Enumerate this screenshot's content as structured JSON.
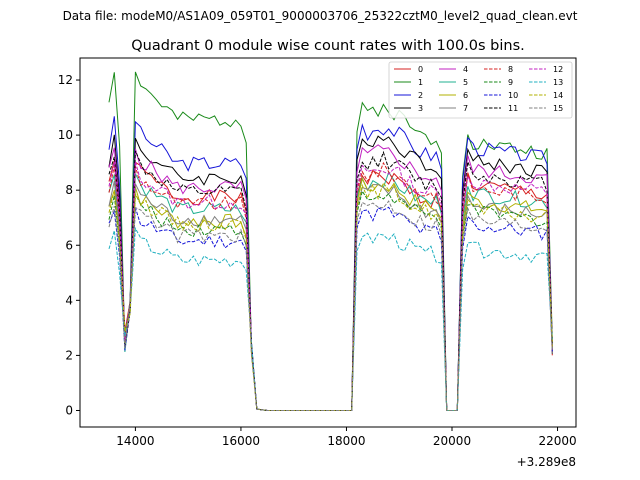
{
  "figure": {
    "suptitle": "Data file: modeM0/AS1A09_059T01_9000003706_25322cztM0_level2_quad_clean.evt"
  },
  "chart_data": {
    "type": "line",
    "title": "Quadrant 0 module wise count rates with 100.0s bins.",
    "xlabel": "",
    "ylabel": "",
    "x_offset_label": "+3.289e8",
    "xlim": [
      12950,
      22350
    ],
    "ylim": [
      -0.6,
      12.8
    ],
    "xticks": [
      14000,
      16000,
      18000,
      20000,
      22000
    ],
    "xtick_labels": [
      "14000",
      "16000",
      "18000",
      "20000",
      "22000"
    ],
    "yticks": [
      0,
      2,
      4,
      6,
      8,
      10,
      12
    ],
    "ytick_labels": [
      "0",
      "2",
      "4",
      "6",
      "8",
      "10",
      "12"
    ],
    "grid": false,
    "legend_position": "top-right",
    "segments": [
      {
        "start": 13500,
        "count": 29
      },
      {
        "start": 16500,
        "count": 17
      },
      {
        "start": 18200,
        "count": 17
      },
      {
        "start": 19900,
        "count": 3
      },
      {
        "start": 20200,
        "count": 18
      }
    ],
    "series": [
      {
        "name": "0",
        "color": "#d62020",
        "dash": false,
        "levels": [
          8.8,
          0,
          8.5,
          8.4
        ],
        "seed": 1
      },
      {
        "name": "1",
        "color": "#1a8a1a",
        "dash": false,
        "levels": [
          12.0,
          0,
          11.0,
          10.0
        ],
        "seed": 2
      },
      {
        "name": "2",
        "color": "#1515d8",
        "dash": false,
        "levels": [
          10.2,
          0,
          10.3,
          9.8
        ],
        "seed": 3
      },
      {
        "name": "3",
        "color": "#000000",
        "dash": false,
        "levels": [
          9.6,
          0,
          9.9,
          9.3
        ],
        "seed": 4
      },
      {
        "name": "4",
        "color": "#c020c0",
        "dash": false,
        "levels": [
          9.2,
          0,
          9.4,
          9.0
        ],
        "seed": 5
      },
      {
        "name": "5",
        "color": "#20b090",
        "dash": false,
        "levels": [
          8.3,
          0,
          8.4,
          8.1
        ],
        "seed": 6
      },
      {
        "name": "6",
        "color": "#b0b000",
        "dash": false,
        "levels": [
          7.8,
          0,
          8.2,
          7.8
        ],
        "seed": 7
      },
      {
        "name": "7",
        "color": "#808080",
        "dash": false,
        "levels": [
          7.9,
          0,
          8.0,
          7.6
        ],
        "seed": 8
      },
      {
        "name": "8",
        "color": "#d62020",
        "dash": true,
        "levels": [
          8.5,
          0,
          8.7,
          8.3
        ],
        "seed": 9
      },
      {
        "name": "9",
        "color": "#1a8a1a",
        "dash": true,
        "levels": [
          7.5,
          0,
          7.8,
          7.4
        ],
        "seed": 10
      },
      {
        "name": "10",
        "color": "#1515d8",
        "dash": true,
        "levels": [
          7.0,
          0,
          7.2,
          6.9
        ],
        "seed": 11
      },
      {
        "name": "11",
        "color": "#000000",
        "dash": true,
        "levels": [
          9.0,
          0,
          9.1,
          8.8
        ],
        "seed": 12
      },
      {
        "name": "12",
        "color": "#c020c0",
        "dash": true,
        "levels": [
          8.6,
          0,
          8.8,
          8.5
        ],
        "seed": 13
      },
      {
        "name": "13",
        "color": "#20b0c0",
        "dash": true,
        "levels": [
          6.2,
          0,
          6.3,
          6.0
        ],
        "seed": 14
      },
      {
        "name": "14",
        "color": "#b0b000",
        "dash": true,
        "levels": [
          7.7,
          0,
          8.0,
          7.5
        ],
        "seed": 15
      },
      {
        "name": "15",
        "color": "#808080",
        "dash": true,
        "levels": [
          7.2,
          0,
          7.5,
          7.1
        ],
        "seed": 16
      }
    ]
  }
}
